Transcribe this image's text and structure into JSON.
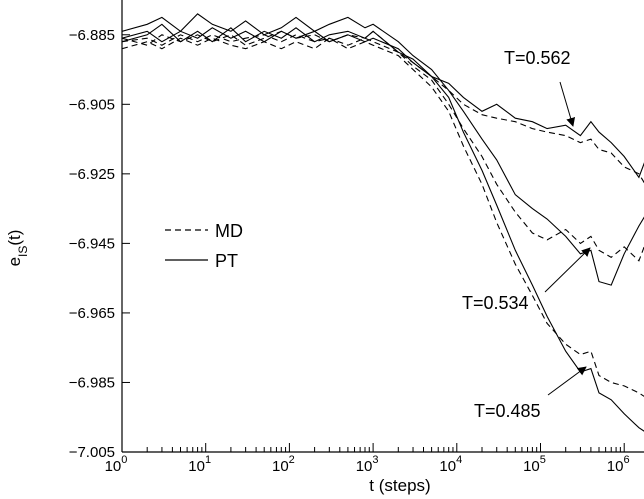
{
  "chart_data": {
    "type": "line",
    "xlabel": "t (steps)",
    "ylabel": "e_IS(t)",
    "xscale": "log",
    "xlim": [
      1,
      2000000
    ],
    "ylim": [
      -7.005,
      -6.875
    ],
    "xticks": [
      {
        "value": 1,
        "base": "10",
        "exp": "0"
      },
      {
        "value": 10,
        "base": "10",
        "exp": "1"
      },
      {
        "value": 100,
        "base": "10",
        "exp": "2"
      },
      {
        "value": 1000,
        "base": "10",
        "exp": "3"
      },
      {
        "value": 10000,
        "base": "10",
        "exp": "4"
      },
      {
        "value": 100000,
        "base": "10",
        "exp": "5"
      },
      {
        "value": 1000000,
        "base": "10",
        "exp": "6"
      }
    ],
    "yticks": [
      {
        "value": -6.885,
        "label": "−6.885"
      },
      {
        "value": -6.905,
        "label": "−6.905"
      },
      {
        "value": -6.925,
        "label": "−6.925"
      },
      {
        "value": -6.945,
        "label": "−6.945"
      },
      {
        "value": -6.965,
        "label": "−6.965"
      },
      {
        "value": -6.985,
        "label": "−6.985"
      },
      {
        "value": -7.005,
        "label": "−7.005"
      }
    ],
    "legend": {
      "placement": "center-left",
      "entries": [
        {
          "label": "MD",
          "style": "dashed"
        },
        {
          "label": "PT",
          "style": "solid"
        }
      ]
    },
    "annotations": [
      {
        "text": "T=0.562",
        "x": 200000,
        "y": -6.912
      },
      {
        "text": "T=0.534",
        "x": 250000,
        "y": -6.947
      },
      {
        "text": "T=0.485",
        "x": 100000,
        "y": -6.984
      }
    ],
    "series": [
      {
        "style": "solid",
        "points": [
          [
            1,
            -6.887
          ],
          [
            2,
            -6.885
          ],
          [
            3,
            -6.882
          ],
          [
            5,
            -6.887
          ],
          [
            8,
            -6.884
          ],
          [
            12,
            -6.887
          ],
          [
            20,
            -6.883
          ],
          [
            30,
            -6.887
          ],
          [
            50,
            -6.884
          ],
          [
            80,
            -6.886
          ],
          [
            120,
            -6.883
          ],
          [
            200,
            -6.887
          ],
          [
            300,
            -6.885
          ],
          [
            500,
            -6.884
          ],
          [
            800,
            -6.886
          ],
          [
            1000,
            -6.884
          ],
          [
            2000,
            -6.89
          ],
          [
            3000,
            -6.892
          ],
          [
            5000,
            -6.897
          ],
          [
            8000,
            -6.903
          ],
          [
            12000,
            -6.913
          ],
          [
            20000,
            -6.924
          ],
          [
            30000,
            -6.934
          ],
          [
            50000,
            -6.947
          ],
          [
            80000,
            -6.957
          ],
          [
            120000,
            -6.966
          ],
          [
            200000,
            -6.976
          ],
          [
            300000,
            -6.982
          ],
          [
            400000,
            -6.981
          ],
          [
            500000,
            -6.988
          ],
          [
            700000,
            -6.99
          ],
          [
            1000000,
            -6.994
          ],
          [
            1500000,
            -6.998
          ],
          [
            2000000,
            -7.0
          ]
        ]
      },
      {
        "style": "solid",
        "points": [
          [
            1,
            -6.884
          ],
          [
            2,
            -6.882
          ],
          [
            3,
            -6.88
          ],
          [
            5,
            -6.884
          ],
          [
            8,
            -6.879
          ],
          [
            12,
            -6.882
          ],
          [
            20,
            -6.884
          ],
          [
            30,
            -6.881
          ],
          [
            50,
            -6.885
          ],
          [
            80,
            -6.883
          ],
          [
            120,
            -6.88
          ],
          [
            200,
            -6.884
          ],
          [
            300,
            -6.882
          ],
          [
            500,
            -6.88
          ],
          [
            800,
            -6.883
          ],
          [
            1000,
            -6.882
          ],
          [
            2000,
            -6.887
          ],
          [
            3000,
            -6.891
          ],
          [
            5000,
            -6.895
          ],
          [
            8000,
            -6.901
          ],
          [
            12000,
            -6.907
          ],
          [
            20000,
            -6.915
          ],
          [
            30000,
            -6.921
          ],
          [
            50000,
            -6.931
          ],
          [
            80000,
            -6.935
          ],
          [
            120000,
            -6.938
          ],
          [
            200000,
            -6.943
          ],
          [
            300000,
            -6.948
          ],
          [
            400000,
            -6.947
          ],
          [
            500000,
            -6.956
          ],
          [
            700000,
            -6.957
          ],
          [
            1000000,
            -6.948
          ],
          [
            1500000,
            -6.94
          ],
          [
            2000000,
            -6.935
          ]
        ]
      },
      {
        "style": "solid",
        "points": [
          [
            1,
            -6.886
          ],
          [
            2,
            -6.884
          ],
          [
            3,
            -6.887
          ],
          [
            5,
            -6.884
          ],
          [
            8,
            -6.886
          ],
          [
            12,
            -6.883
          ],
          [
            20,
            -6.886
          ],
          [
            30,
            -6.884
          ],
          [
            50,
            -6.887
          ],
          [
            80,
            -6.884
          ],
          [
            120,
            -6.886
          ],
          [
            200,
            -6.884
          ],
          [
            300,
            -6.887
          ],
          [
            500,
            -6.885
          ],
          [
            800,
            -6.887
          ],
          [
            1000,
            -6.886
          ],
          [
            2000,
            -6.889
          ],
          [
            3000,
            -6.893
          ],
          [
            5000,
            -6.897
          ],
          [
            8000,
            -6.899
          ],
          [
            12000,
            -6.903
          ],
          [
            20000,
            -6.907
          ],
          [
            30000,
            -6.905
          ],
          [
            50000,
            -6.909
          ],
          [
            80000,
            -6.91
          ],
          [
            120000,
            -6.912
          ],
          [
            200000,
            -6.911
          ],
          [
            300000,
            -6.914
          ],
          [
            400000,
            -6.91
          ],
          [
            500000,
            -6.913
          ],
          [
            700000,
            -6.916
          ],
          [
            1000000,
            -6.92
          ],
          [
            1500000,
            -6.926
          ],
          [
            2000000,
            -6.918
          ]
        ]
      },
      {
        "style": "dashed",
        "points": [
          [
            1,
            -6.889
          ],
          [
            2,
            -6.887
          ],
          [
            3,
            -6.889
          ],
          [
            5,
            -6.886
          ],
          [
            8,
            -6.888
          ],
          [
            12,
            -6.886
          ],
          [
            20,
            -6.888
          ],
          [
            30,
            -6.889
          ],
          [
            50,
            -6.887
          ],
          [
            80,
            -6.889
          ],
          [
            120,
            -6.887
          ],
          [
            200,
            -6.889
          ],
          [
            300,
            -6.886
          ],
          [
            500,
            -6.889
          ],
          [
            800,
            -6.887
          ],
          [
            1000,
            -6.888
          ],
          [
            2000,
            -6.891
          ],
          [
            3000,
            -6.895
          ],
          [
            5000,
            -6.9
          ],
          [
            8000,
            -6.907
          ],
          [
            12000,
            -6.917
          ],
          [
            20000,
            -6.928
          ],
          [
            30000,
            -6.939
          ],
          [
            50000,
            -6.951
          ],
          [
            80000,
            -6.96
          ],
          [
            120000,
            -6.968
          ],
          [
            200000,
            -6.974
          ],
          [
            300000,
            -6.977
          ],
          [
            400000,
            -6.976
          ],
          [
            500000,
            -6.983
          ],
          [
            700000,
            -6.985
          ],
          [
            1000000,
            -6.986
          ],
          [
            1500000,
            -6.988
          ],
          [
            2000000,
            -6.99
          ]
        ]
      },
      {
        "style": "dashed",
        "points": [
          [
            1,
            -6.886
          ],
          [
            2,
            -6.888
          ],
          [
            3,
            -6.885
          ],
          [
            5,
            -6.887
          ],
          [
            8,
            -6.885
          ],
          [
            12,
            -6.887
          ],
          [
            20,
            -6.885
          ],
          [
            30,
            -6.888
          ],
          [
            50,
            -6.886
          ],
          [
            80,
            -6.884
          ],
          [
            120,
            -6.886
          ],
          [
            200,
            -6.885
          ],
          [
            300,
            -6.887
          ],
          [
            500,
            -6.885
          ],
          [
            800,
            -6.886
          ],
          [
            1000,
            -6.884
          ],
          [
            2000,
            -6.89
          ],
          [
            3000,
            -6.894
          ],
          [
            5000,
            -6.898
          ],
          [
            8000,
            -6.905
          ],
          [
            12000,
            -6.912
          ],
          [
            20000,
            -6.92
          ],
          [
            30000,
            -6.928
          ],
          [
            50000,
            -6.936
          ],
          [
            80000,
            -6.942
          ],
          [
            120000,
            -6.944
          ],
          [
            200000,
            -6.941
          ],
          [
            300000,
            -6.945
          ],
          [
            400000,
            -6.943
          ],
          [
            500000,
            -6.947
          ],
          [
            700000,
            -6.949
          ],
          [
            1000000,
            -6.946
          ],
          [
            1500000,
            -6.95
          ],
          [
            2000000,
            -6.942
          ]
        ]
      },
      {
        "style": "dashed",
        "points": [
          [
            1,
            -6.887
          ],
          [
            2,
            -6.886
          ],
          [
            3,
            -6.888
          ],
          [
            5,
            -6.885
          ],
          [
            8,
            -6.887
          ],
          [
            12,
            -6.885
          ],
          [
            20,
            -6.887
          ],
          [
            30,
            -6.886
          ],
          [
            50,
            -6.885
          ],
          [
            80,
            -6.887
          ],
          [
            120,
            -6.885
          ],
          [
            200,
            -6.887
          ],
          [
            300,
            -6.886
          ],
          [
            500,
            -6.888
          ],
          [
            800,
            -6.886
          ],
          [
            1000,
            -6.887
          ],
          [
            2000,
            -6.89
          ],
          [
            3000,
            -6.893
          ],
          [
            5000,
            -6.897
          ],
          [
            8000,
            -6.901
          ],
          [
            12000,
            -6.905
          ],
          [
            20000,
            -6.908
          ],
          [
            30000,
            -6.909
          ],
          [
            50000,
            -6.91
          ],
          [
            80000,
            -6.912
          ],
          [
            120000,
            -6.913
          ],
          [
            200000,
            -6.914
          ],
          [
            300000,
            -6.916
          ],
          [
            400000,
            -6.915
          ],
          [
            500000,
            -6.918
          ],
          [
            700000,
            -6.919
          ],
          [
            1000000,
            -6.923
          ],
          [
            1500000,
            -6.925
          ],
          [
            2000000,
            -6.93
          ]
        ]
      }
    ]
  }
}
